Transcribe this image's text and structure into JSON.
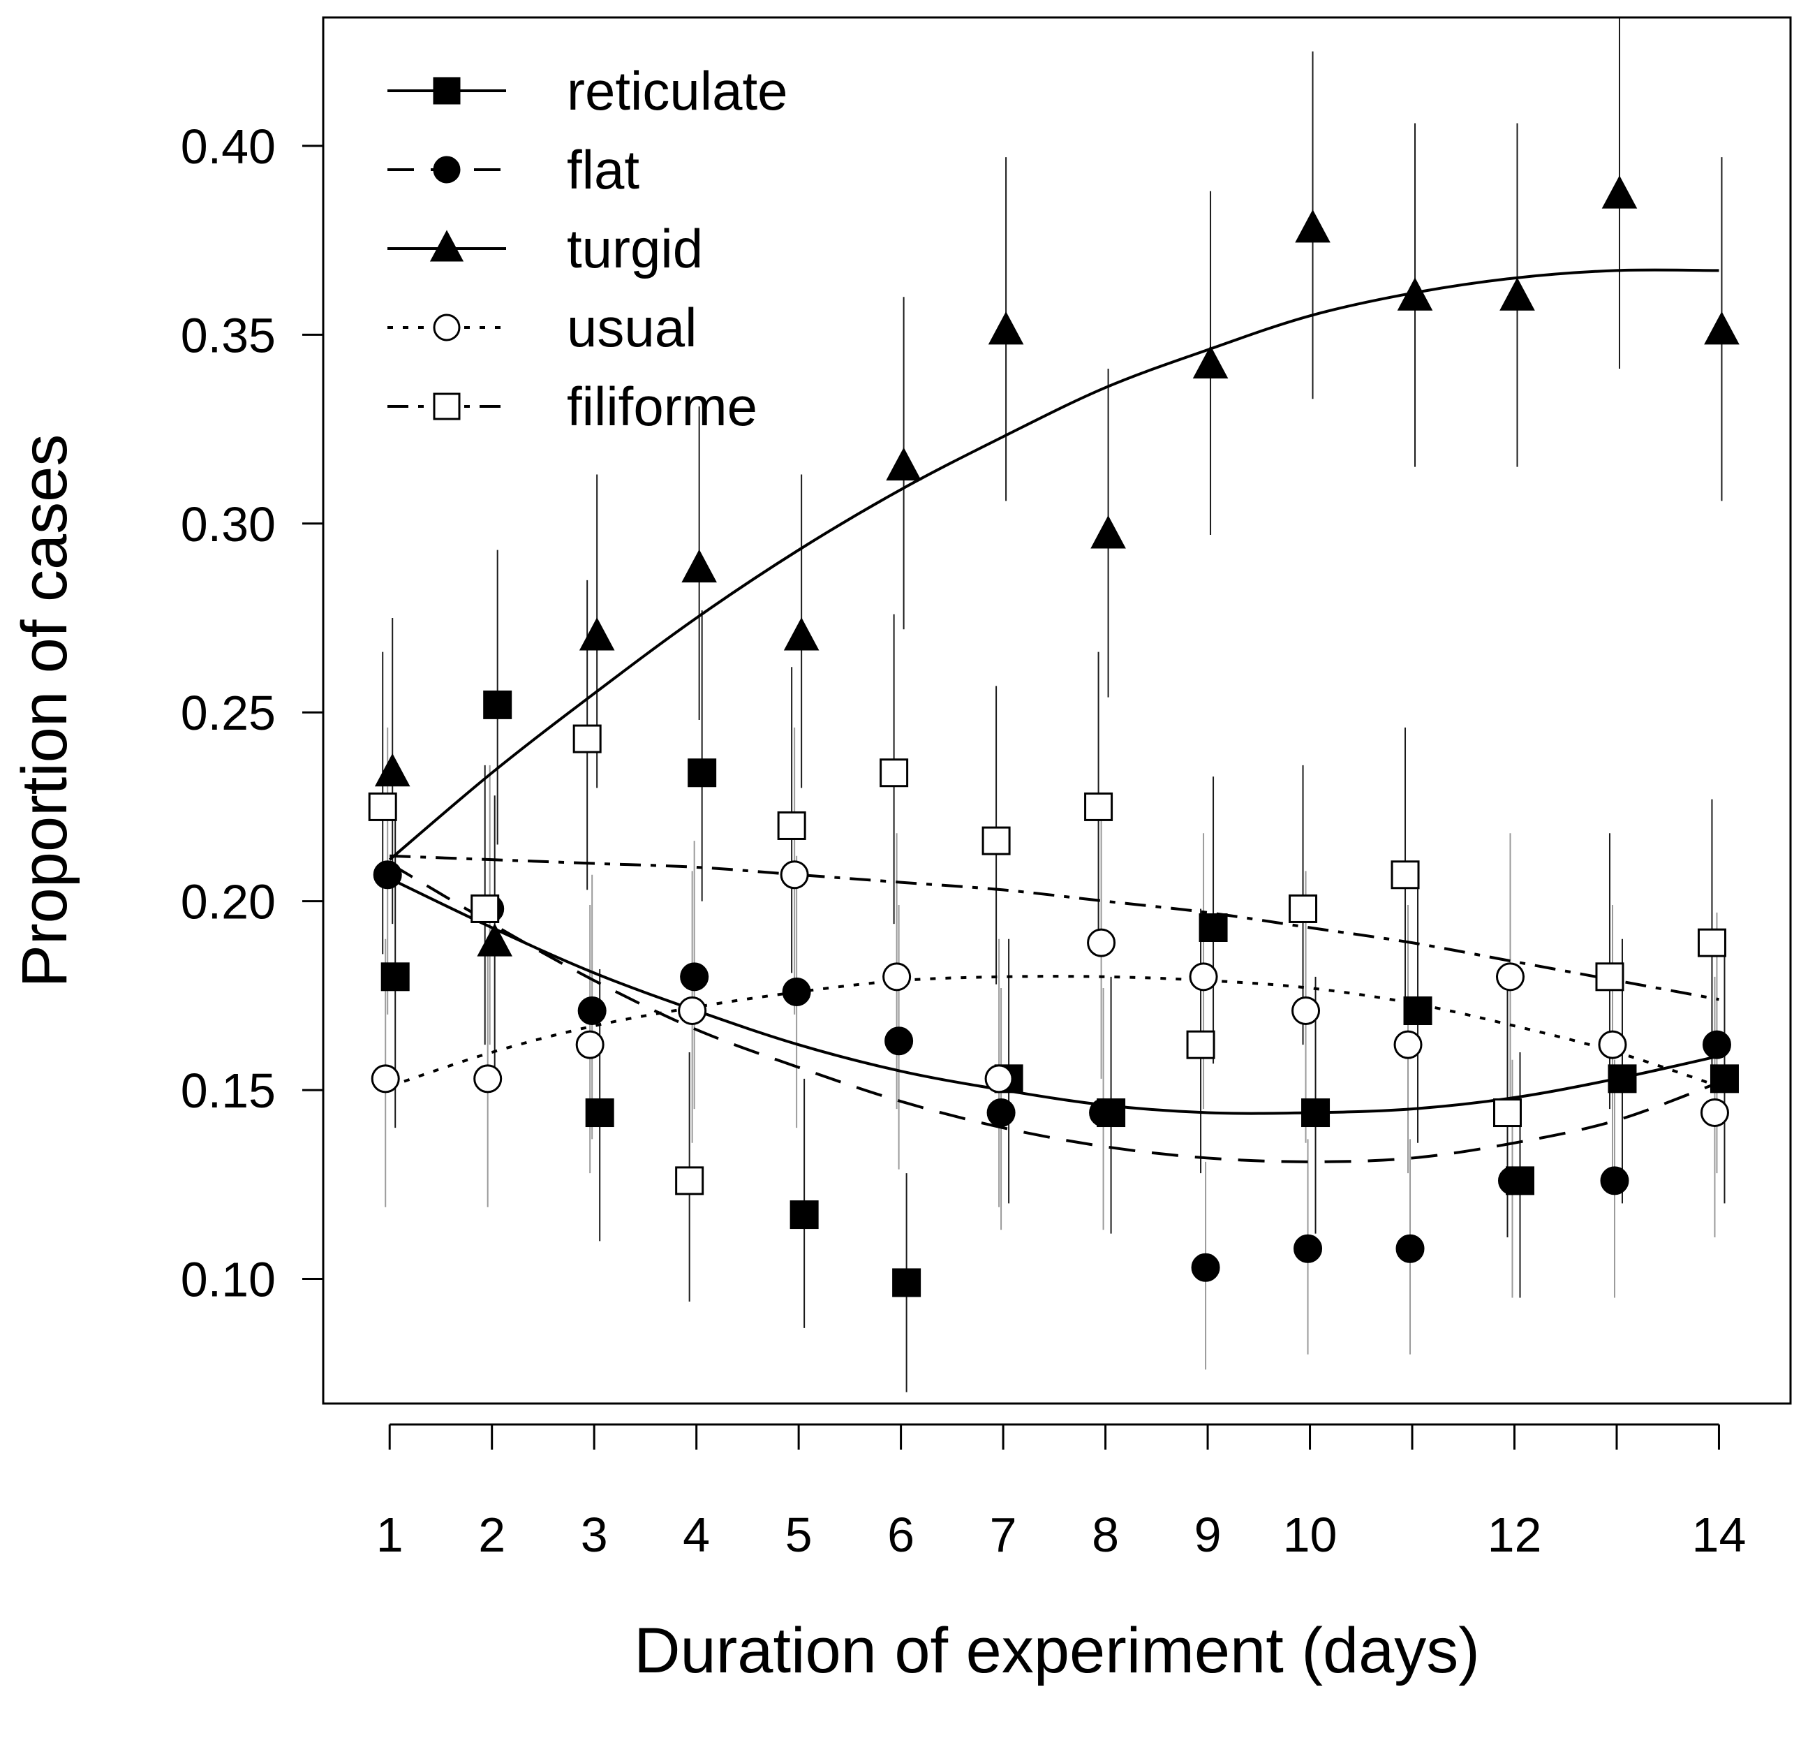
{
  "chart_data": {
    "type": "line",
    "title": "",
    "xlabel": "Duration of experiment (days)",
    "ylabel": "Proportion of cases",
    "xlim": [
      0.35,
      14.7
    ],
    "ylim": [
      0.067,
      0.434
    ],
    "x_ticks": [
      1,
      2,
      3,
      4,
      5,
      6,
      7,
      8,
      9,
      10,
      11,
      12,
      13,
      14
    ],
    "x_tick_labels": [
      "1",
      "2",
      "3",
      "4",
      "5",
      "6",
      "7",
      "8",
      "9",
      "10",
      "",
      "12",
      "",
      "14"
    ],
    "y_ticks": [
      0.1,
      0.15,
      0.2,
      0.25,
      0.3,
      0.35,
      0.4
    ],
    "y_tick_labels": [
      "0.10",
      "0.15",
      "0.20",
      "0.25",
      "0.30",
      "0.35",
      "0.40"
    ],
    "grid": false,
    "legend_position": "top-left",
    "x": [
      1,
      2,
      3,
      4,
      5,
      6,
      7,
      8,
      9,
      10,
      11,
      12,
      13,
      14
    ],
    "series": [
      {
        "name": "reticulate",
        "marker": "filled-square",
        "line": "solid",
        "values": [
          0.18,
          0.252,
          0.144,
          0.234,
          0.117,
          0.099,
          0.153,
          0.144,
          0.193,
          0.144,
          0.171,
          0.126,
          0.153,
          0.153
        ],
        "err_low": [
          0.14,
          0.215,
          0.11,
          0.2,
          0.087,
          0.07,
          0.12,
          0.112,
          0.157,
          0.112,
          0.136,
          0.095,
          0.12,
          0.12
        ],
        "err_high": [
          0.225,
          0.293,
          0.182,
          0.277,
          0.153,
          0.128,
          0.19,
          0.18,
          0.233,
          0.18,
          0.21,
          0.16,
          0.19,
          0.19
        ],
        "fit": [
          0.206,
          0.193,
          0.181,
          0.171,
          0.162,
          0.155,
          0.15,
          0.146,
          0.144,
          0.144,
          0.145,
          0.148,
          0.153,
          0.159
        ]
      },
      {
        "name": "flat",
        "marker": "filled-circle",
        "line": "dashed",
        "values": [
          0.207,
          0.198,
          0.171,
          0.18,
          0.176,
          0.163,
          0.144,
          0.144,
          0.103,
          0.108,
          0.108,
          0.126,
          0.126,
          0.162
        ],
        "err_low": [
          0.17,
          0.162,
          0.137,
          0.145,
          0.14,
          0.129,
          0.113,
          0.113,
          0.076,
          0.08,
          0.08,
          0.095,
          0.095,
          0.128
        ],
        "err_high": [
          0.246,
          0.236,
          0.207,
          0.216,
          0.212,
          0.199,
          0.177,
          0.177,
          0.131,
          0.137,
          0.137,
          0.158,
          0.158,
          0.197
        ],
        "fit": [
          0.21,
          0.194,
          0.179,
          0.166,
          0.156,
          0.147,
          0.14,
          0.135,
          0.132,
          0.131,
          0.132,
          0.136,
          0.142,
          0.152
        ]
      },
      {
        "name": "turgid",
        "marker": "filled-triangle",
        "line": "solid",
        "values": [
          0.234,
          0.189,
          0.27,
          0.288,
          0.27,
          0.315,
          0.351,
          0.297,
          0.342,
          0.378,
          0.36,
          0.36,
          0.387,
          0.351
        ],
        "err_low": [
          0.194,
          0.153,
          0.23,
          0.248,
          0.23,
          0.272,
          0.306,
          0.254,
          0.297,
          0.333,
          0.315,
          0.315,
          0.341,
          0.306
        ],
        "err_high": [
          0.275,
          0.228,
          0.313,
          0.331,
          0.313,
          0.36,
          0.397,
          0.341,
          0.388,
          0.425,
          0.406,
          0.406,
          0.434,
          0.397
        ],
        "fit": [
          0.211,
          0.234,
          0.255,
          0.275,
          0.293,
          0.309,
          0.323,
          0.336,
          0.346,
          0.355,
          0.361,
          0.365,
          0.367,
          0.367
        ]
      },
      {
        "name": "usual",
        "marker": "open-circle",
        "line": "dotted",
        "values": [
          0.153,
          0.153,
          0.162,
          0.171,
          0.207,
          0.18,
          0.153,
          0.189,
          0.18,
          0.171,
          0.162,
          0.18,
          0.162,
          0.144
        ],
        "err_low": [
          0.119,
          0.119,
          0.128,
          0.136,
          0.17,
          0.145,
          0.119,
          0.153,
          0.145,
          0.136,
          0.128,
          0.145,
          0.128,
          0.111
        ],
        "err_high": [
          0.19,
          0.19,
          0.199,
          0.208,
          0.246,
          0.218,
          0.19,
          0.228,
          0.218,
          0.208,
          0.199,
          0.218,
          0.199,
          0.18
        ],
        "fit": [
          0.151,
          0.16,
          0.167,
          0.172,
          0.176,
          0.179,
          0.18,
          0.18,
          0.179,
          0.177,
          0.173,
          0.167,
          0.16,
          0.151
        ]
      },
      {
        "name": "filiforme",
        "marker": "open-square",
        "line": "dot-dash",
        "values": [
          0.225,
          0.198,
          0.243,
          0.126,
          0.22,
          0.234,
          0.216,
          0.225,
          0.162,
          0.198,
          0.207,
          0.144,
          0.18,
          0.189
        ],
        "err_low": [
          0.186,
          0.162,
          0.203,
          0.094,
          0.181,
          0.194,
          0.178,
          0.186,
          0.128,
          0.162,
          0.17,
          0.111,
          0.145,
          0.153
        ],
        "err_high": [
          0.266,
          0.236,
          0.285,
          0.16,
          0.262,
          0.276,
          0.257,
          0.266,
          0.198,
          0.236,
          0.246,
          0.18,
          0.218,
          0.227
        ],
        "fit": [
          0.212,
          0.211,
          0.21,
          0.209,
          0.207,
          0.205,
          0.203,
          0.2,
          0.197,
          0.193,
          0.189,
          0.184,
          0.179,
          0.174
        ]
      }
    ]
  }
}
